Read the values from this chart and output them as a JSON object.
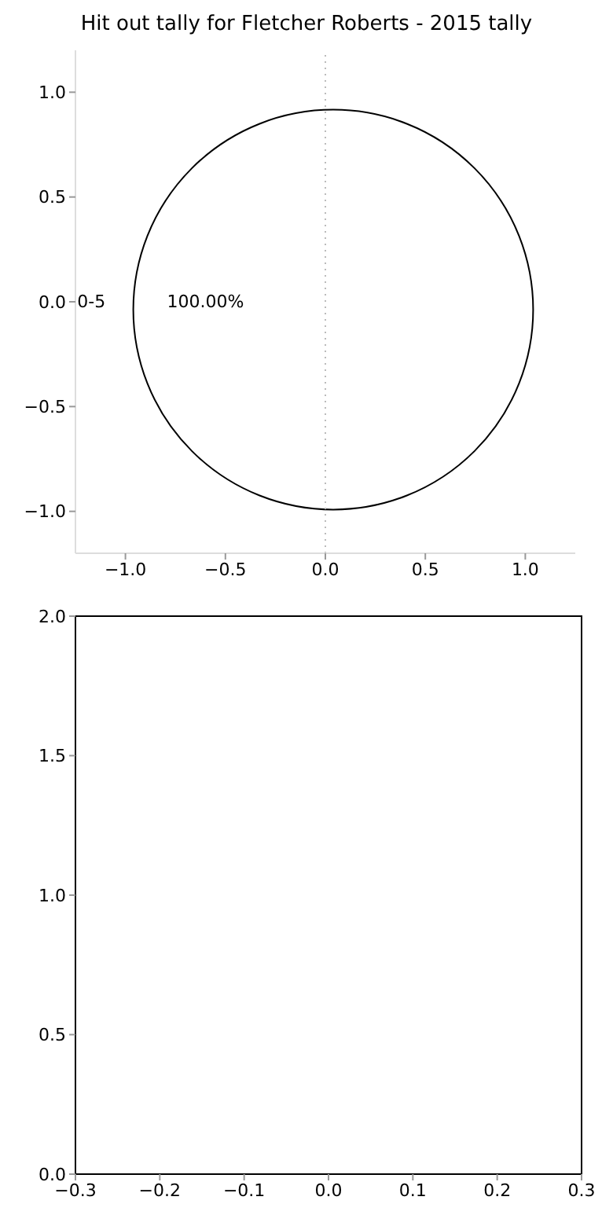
{
  "chart_data": [
    {
      "type": "pie",
      "title": "Hit out tally for Fletcher Roberts - 2015 tally",
      "categories": [
        "0-5"
      ],
      "values": [
        100
      ],
      "colors": [
        "#ffffff"
      ],
      "value_labels": [
        "100.00%"
      ]
    },
    {
      "type": "scatter",
      "xlim": [
        -1.25,
        1.25
      ],
      "xticks": [
        {
          "value": -1,
          "label": "−1.0"
        },
        {
          "value": -0.5,
          "label": "−0.5"
        },
        {
          "value": 0,
          "label": "0.0"
        },
        {
          "value": 0.5,
          "label": "0.5"
        },
        {
          "value": 1,
          "label": "1.0"
        }
      ],
      "ylim": [
        -1.2,
        1.2
      ],
      "yticks": [
        {
          "value": -1,
          "label": "−1.0"
        },
        {
          "value": -0.5,
          "label": "−0.5"
        },
        {
          "value": 0,
          "label": "0.0"
        },
        {
          "value": 0.5,
          "label": "0.5"
        },
        {
          "value": 1,
          "label": "1.0"
        }
      ],
      "ref_lines": [
        {
          "axis": "x",
          "value": 0,
          "color": "#bbbbbb",
          "line_style": "dotted"
        }
      ]
    },
    {
      "type": "scatter",
      "xlim": [
        -0.3,
        0.3
      ],
      "xticks": [
        {
          "value": -0.3,
          "label": "−0.3"
        },
        {
          "value": -0.2,
          "label": "−0.2"
        },
        {
          "value": -0.1,
          "label": "−0.1"
        },
        {
          "value": 0,
          "label": "0.0"
        },
        {
          "value": 0.1,
          "label": "0.1"
        },
        {
          "value": 0.2,
          "label": "0.2"
        },
        {
          "value": 0.3,
          "label": "0.3"
        }
      ],
      "ylim": [
        0,
        2
      ],
      "yticks": [
        {
          "value": 0,
          "label": "0.0"
        },
        {
          "value": 0.5,
          "label": "0.5"
        },
        {
          "value": 1,
          "label": "1.0"
        },
        {
          "value": 1.5,
          "label": "1.5"
        },
        {
          "value": 2,
          "label": "2.0"
        }
      ]
    }
  ]
}
